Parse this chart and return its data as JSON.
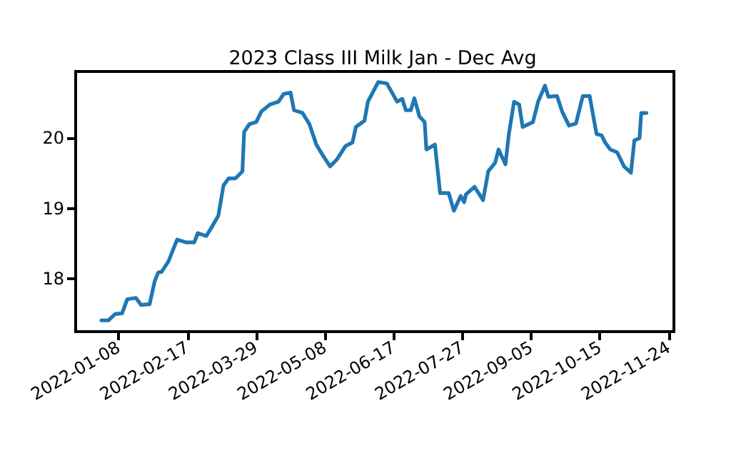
{
  "chart_data": {
    "type": "line",
    "title": "2023 Class III Milk Jan - Dec Avg",
    "x": [
      "2021-12-29",
      "2022-01-02",
      "2022-01-06",
      "2022-01-10",
      "2022-01-13",
      "2022-01-18",
      "2022-01-21",
      "2022-01-26",
      "2022-01-29",
      "2022-01-31",
      "2022-02-02",
      "2022-02-06",
      "2022-02-11",
      "2022-02-16",
      "2022-02-21",
      "2022-02-23",
      "2022-02-28",
      "2022-03-03",
      "2022-03-07",
      "2022-03-10",
      "2022-03-13",
      "2022-03-17",
      "2022-03-21",
      "2022-03-22",
      "2022-03-25",
      "2022-03-29",
      "2022-04-01",
      "2022-04-06",
      "2022-04-11",
      "2022-04-14",
      "2022-04-18",
      "2022-04-20",
      "2022-04-25",
      "2022-04-29",
      "2022-05-03",
      "2022-05-07",
      "2022-05-11",
      "2022-05-15",
      "2022-05-20",
      "2022-05-24",
      "2022-05-26",
      "2022-05-31",
      "2022-06-02",
      "2022-06-08",
      "2022-06-13",
      "2022-06-19",
      "2022-06-22",
      "2022-06-24",
      "2022-06-27",
      "2022-06-29",
      "2022-07-02",
      "2022-07-05",
      "2022-07-06",
      "2022-07-11",
      "2022-07-14",
      "2022-07-19",
      "2022-07-22",
      "2022-07-26",
      "2022-07-28",
      "2022-07-29",
      "2022-08-03",
      "2022-08-08",
      "2022-08-11",
      "2022-08-15",
      "2022-08-17",
      "2022-08-21",
      "2022-08-23",
      "2022-08-26",
      "2022-08-29",
      "2022-08-31",
      "2022-09-06",
      "2022-09-09",
      "2022-09-13",
      "2022-09-15",
      "2022-09-20",
      "2022-09-23",
      "2022-09-27",
      "2022-10-01",
      "2022-10-05",
      "2022-10-09",
      "2022-10-13",
      "2022-10-16",
      "2022-10-18",
      "2022-10-21",
      "2022-10-25",
      "2022-10-29",
      "2022-11-02",
      "2022-11-04",
      "2022-11-07",
      "2022-11-08",
      "2022-11-11"
    ],
    "series": [
      {
        "color": "#1f77b4",
        "values": [
          17.41,
          17.41,
          17.5,
          17.51,
          17.71,
          17.73,
          17.63,
          17.64,
          17.97,
          18.09,
          18.1,
          18.25,
          18.56,
          18.52,
          18.52,
          18.65,
          18.61,
          18.73,
          18.9,
          19.33,
          19.43,
          19.43,
          19.53,
          20.09,
          20.2,
          20.23,
          20.38,
          20.48,
          20.52,
          20.63,
          20.65,
          20.4,
          20.36,
          20.2,
          19.91,
          19.75,
          19.6,
          19.7,
          19.89,
          19.94,
          20.16,
          20.25,
          20.52,
          20.8,
          20.78,
          20.52,
          20.56,
          20.4,
          20.4,
          20.57,
          20.31,
          20.23,
          19.84,
          19.91,
          19.22,
          19.22,
          18.97,
          19.18,
          19.09,
          19.2,
          19.31,
          19.12,
          19.53,
          19.65,
          19.84,
          19.63,
          20.06,
          20.52,
          20.48,
          20.16,
          20.23,
          20.52,
          20.75,
          20.59,
          20.6,
          20.38,
          20.18,
          20.21,
          20.6,
          20.6,
          20.06,
          20.04,
          19.94,
          19.84,
          19.8,
          19.6,
          19.51,
          19.97,
          20.0,
          20.36,
          20.36
        ]
      }
    ],
    "xlim": [
      "2021-12-14",
      "2022-11-27"
    ],
    "xticks": [
      "2022-01-08",
      "2022-02-17",
      "2022-03-29",
      "2022-05-08",
      "2022-06-17",
      "2022-07-27",
      "2022-09-05",
      "2022-10-15",
      "2022-11-24"
    ],
    "ylim": [
      17.25,
      20.95
    ],
    "yticks": [
      18,
      19,
      20
    ],
    "grid": false,
    "marker": "none",
    "line_style": "solid"
  }
}
